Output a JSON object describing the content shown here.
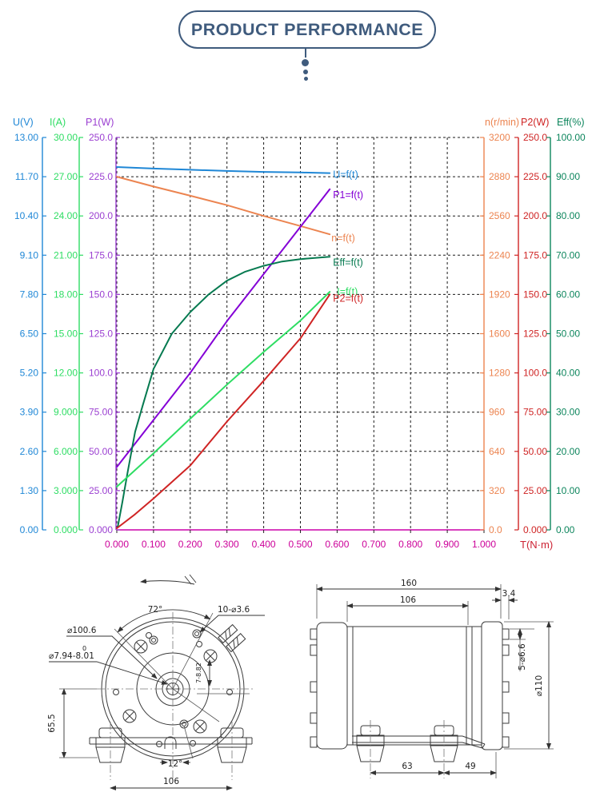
{
  "title": {
    "text": "PRODUCT PERFORMANCE",
    "color": "#3f5b7d"
  },
  "chart_data": {
    "type": "line",
    "grid": {
      "rows": 10,
      "cols": 10,
      "style": "dashed"
    },
    "x_axis": {
      "label": "T(N·m)",
      "min": 0,
      "max": 1,
      "ticks": [
        "0.000",
        "0.100",
        "0.200",
        "0.300",
        "0.400",
        "0.500",
        "0.600",
        "0.700",
        "0.800",
        "0.900",
        "1.000"
      ],
      "line_color": "#cc00aa",
      "label_color": "#cc0099",
      "title_color": "#cc2233"
    },
    "y_axes": [
      {
        "id": "U",
        "label": "U(V)",
        "color": "#1f87d6",
        "min": 0,
        "max": 13,
        "ticks": [
          "13.00",
          "11.70",
          "10.40",
          "9.10",
          "7.80",
          "6.50",
          "5.20",
          "3.90",
          "2.60",
          "1.30",
          "0.00"
        ]
      },
      {
        "id": "I",
        "label": "I(A)",
        "color": "#2edd63",
        "min": 0,
        "max": 30,
        "ticks": [
          "30.00",
          "27.00",
          "24.00",
          "21.00",
          "18.00",
          "15.00",
          "12.00",
          "9.000",
          "6.000",
          "3.000",
          "0.000"
        ]
      },
      {
        "id": "P1",
        "label": "P1(W)",
        "color": "#9b3fd1",
        "min": 0,
        "max": 250,
        "ticks": [
          "250.0",
          "225.0",
          "200.0",
          "175.0",
          "150.0",
          "125.0",
          "100.0",
          "75.00",
          "50.00",
          "25.00",
          "0.000"
        ]
      },
      {
        "id": "n",
        "label": "n(r/min)",
        "color": "#ec8450",
        "min": 0,
        "max": 3200,
        "ticks": [
          "3200",
          "2880",
          "2560",
          "2240",
          "1920",
          "1600",
          "1280",
          "960",
          "640",
          "320",
          "0.0"
        ]
      },
      {
        "id": "P2",
        "label": "P2(W)",
        "color": "#cf2424",
        "min": 0,
        "max": 250,
        "ticks": [
          "250.0",
          "225.0",
          "200.0",
          "175.0",
          "150.0",
          "125.0",
          "100.0",
          "75.00",
          "50.00",
          "25.00",
          "0.000"
        ]
      },
      {
        "id": "Eff",
        "label": "Eff(%)",
        "color": "#0c855c",
        "min": 0,
        "max": 100,
        "ticks": [
          "100.00",
          "90.00",
          "80.00",
          "70.00",
          "60.00",
          "50.00",
          "40.00",
          "30.00",
          "20.00",
          "10.00",
          "0.00"
        ]
      }
    ],
    "series": [
      {
        "name": "U=f(t)",
        "axis": "U",
        "color": "#1f87d6",
        "points": [
          [
            0,
            12.02
          ],
          [
            0.1,
            11.97
          ],
          [
            0.2,
            11.93
          ],
          [
            0.3,
            11.89
          ],
          [
            0.4,
            11.86
          ],
          [
            0.5,
            11.84
          ],
          [
            0.58,
            11.82
          ]
        ]
      },
      {
        "name": "n=f(t)",
        "axis": "n",
        "color": "#ec8450",
        "points": [
          [
            0,
            2880
          ],
          [
            0.1,
            2800
          ],
          [
            0.2,
            2725
          ],
          [
            0.3,
            2648
          ],
          [
            0.4,
            2560
          ],
          [
            0.5,
            2478
          ],
          [
            0.58,
            2410
          ]
        ]
      },
      {
        "name": "P1=f(t)",
        "axis": "P1",
        "color": "#8400d6",
        "points": [
          [
            0,
            40
          ],
          [
            0.1,
            70
          ],
          [
            0.2,
            100
          ],
          [
            0.3,
            133
          ],
          [
            0.4,
            163
          ],
          [
            0.5,
            193
          ],
          [
            0.58,
            217
          ]
        ]
      },
      {
        "name": "Eff=f(t)",
        "axis": "Eff",
        "color": "#067a50",
        "points": [
          [
            0.003,
            1
          ],
          [
            0.015,
            7
          ],
          [
            0.03,
            15
          ],
          [
            0.05,
            25
          ],
          [
            0.07,
            31.5
          ],
          [
            0.1,
            41
          ],
          [
            0.15,
            50
          ],
          [
            0.2,
            55.5
          ],
          [
            0.25,
            60
          ],
          [
            0.3,
            63.5
          ],
          [
            0.35,
            65.8
          ],
          [
            0.4,
            67.3
          ],
          [
            0.45,
            68.4
          ],
          [
            0.5,
            69
          ],
          [
            0.58,
            69.6
          ]
        ]
      },
      {
        "name": "I=f(t)",
        "axis": "I",
        "color": "#2edd63",
        "points": [
          [
            0,
            3.3
          ],
          [
            0.1,
            5.85
          ],
          [
            0.2,
            8.5
          ],
          [
            0.3,
            11.1
          ],
          [
            0.4,
            13.6
          ],
          [
            0.5,
            16.0
          ],
          [
            0.58,
            18.2
          ]
        ]
      },
      {
        "name": "P2=f(t)",
        "axis": "P2",
        "color": "#cf2424",
        "points": [
          [
            0,
            1
          ],
          [
            0.05,
            10
          ],
          [
            0.1,
            20
          ],
          [
            0.2,
            41
          ],
          [
            0.3,
            69
          ],
          [
            0.4,
            95
          ],
          [
            0.5,
            122
          ],
          [
            0.58,
            150
          ]
        ]
      }
    ]
  },
  "drawings": {
    "front_view": {
      "dims": {
        "angle_top": "72°",
        "mount_holes": "10-⌀3.6",
        "flange_dia": "⌀100.6",
        "shaft_dia": "⌀7.94-8.01",
        "shaft_dia_sup": "0",
        "keyway": "7-8.82",
        "height": "65.5",
        "angle_bottom": "12°",
        "foot_spacing": "106"
      }
    },
    "side_view": {
      "dims": {
        "total_length": "160",
        "body_length": "106",
        "flange_thickness": "3.4",
        "mount_holes": "5-⌀6.6",
        "body_dia": "⌀110",
        "foot_spacing": "63",
        "foot_to_flange": "49"
      }
    }
  }
}
